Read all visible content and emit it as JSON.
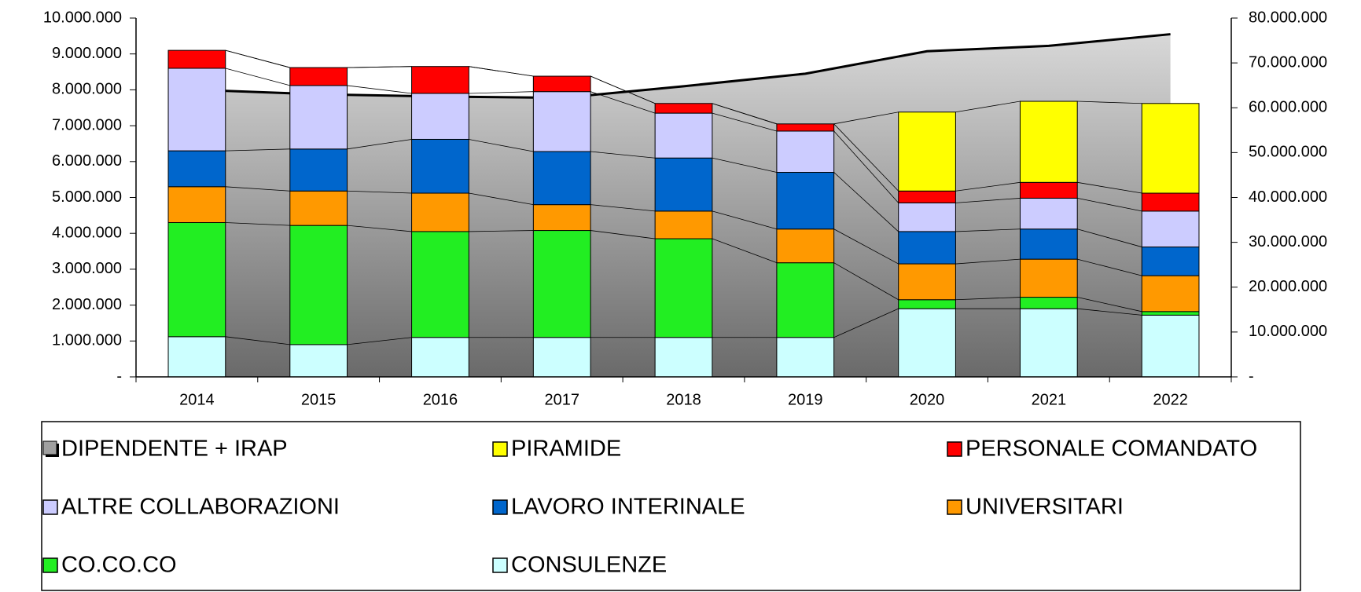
{
  "chart_data": {
    "type": "bar",
    "stacked": true,
    "categories": [
      "2014",
      "2015",
      "2016",
      "2017",
      "2018",
      "2019",
      "2020",
      "2021",
      "2022"
    ],
    "series": [
      {
        "name": "DIPENDENTE + IRAP",
        "type": "area",
        "axis": "y2",
        "color": "#a0a0a0",
        "values": [
          64000000,
          63000000,
          62500000,
          62200000,
          64800000,
          67600000,
          72600000,
          73800000,
          76400000
        ]
      },
      {
        "name": "PIRAMIDE",
        "color": "#ffff00",
        "values": [
          0,
          0,
          0,
          0,
          0,
          0,
          2200000,
          2260000,
          2500000
        ]
      },
      {
        "name": "PERSONALE COMANDATO",
        "color": "#ff0000",
        "values": [
          500000,
          500000,
          750000,
          430000,
          270000,
          200000,
          330000,
          440000,
          500000
        ]
      },
      {
        "name": "ALTRE COLLABORAZIONI",
        "color": "#ccccff",
        "values": [
          2300000,
          1770000,
          1280000,
          1670000,
          1250000,
          1150000,
          800000,
          860000,
          1000000
        ]
      },
      {
        "name": "LAVORO INTERINALE",
        "color": "#0066cc",
        "values": [
          1000000,
          1170000,
          1500000,
          1480000,
          1480000,
          1580000,
          900000,
          840000,
          800000
        ]
      },
      {
        "name": "UNIVERSITARI",
        "color": "#ff9900",
        "values": [
          1000000,
          960000,
          1070000,
          720000,
          770000,
          940000,
          1000000,
          1060000,
          1000000
        ]
      },
      {
        "name": "CO.CO.CO",
        "color": "#22ee22",
        "values": [
          3180000,
          3320000,
          2950000,
          2980000,
          2750000,
          2080000,
          250000,
          320000,
          100000
        ]
      },
      {
        "name": "CONSULENZE",
        "color": "#ccffff",
        "values": [
          1120000,
          900000,
          1100000,
          1100000,
          1100000,
          1100000,
          1900000,
          1900000,
          1720000
        ]
      }
    ],
    "ylim": [
      0,
      10000000
    ],
    "yticks": [
      {
        "value": 0,
        "label": "-"
      },
      {
        "value": 1000000,
        "label": "1.000.000"
      },
      {
        "value": 2000000,
        "label": "2.000.000"
      },
      {
        "value": 3000000,
        "label": "3.000.000"
      },
      {
        "value": 4000000,
        "label": "4.000.000"
      },
      {
        "value": 5000000,
        "label": "5.000.000"
      },
      {
        "value": 6000000,
        "label": "6.000.000"
      },
      {
        "value": 7000000,
        "label": "7.000.000"
      },
      {
        "value": 8000000,
        "label": "8.000.000"
      },
      {
        "value": 9000000,
        "label": "9.000.000"
      },
      {
        "value": 10000000,
        "label": "10.000.000"
      }
    ],
    "y2lim": [
      0,
      80000000
    ],
    "y2ticks": [
      {
        "value": 0,
        "label": "-"
      },
      {
        "value": 10000000,
        "label": "10.000.000"
      },
      {
        "value": 20000000,
        "label": "20.000.000"
      },
      {
        "value": 30000000,
        "label": "30.000.000"
      },
      {
        "value": 40000000,
        "label": "40.000.000"
      },
      {
        "value": 50000000,
        "label": "50.000.000"
      },
      {
        "value": 60000000,
        "label": "60.000.000"
      },
      {
        "value": 70000000,
        "label": "70.000.000"
      },
      {
        "value": 80000000,
        "label": "80.000.000"
      }
    ],
    "legend": "bottom"
  }
}
